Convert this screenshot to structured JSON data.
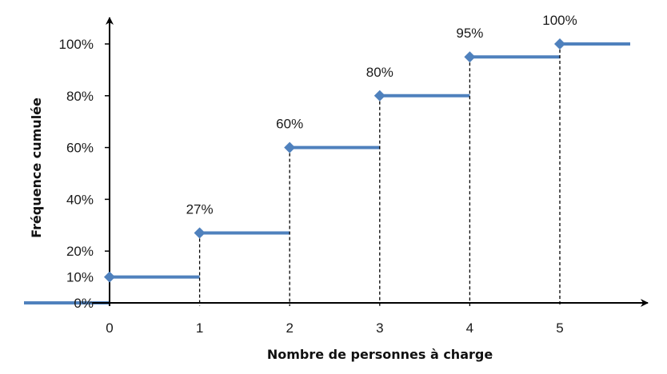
{
  "chart_data": {
    "type": "line",
    "subtype": "step",
    "title": "",
    "xlabel": "Nombre de personnes à charge",
    "ylabel": "Fréquence cumulée",
    "x_ticks": [
      "0",
      "1",
      "2",
      "3",
      "4",
      "5"
    ],
    "y_ticks": [
      {
        "value": 0,
        "label": "0%"
      },
      {
        "value": 10,
        "label": "10%"
      },
      {
        "value": 20,
        "label": "20%"
      },
      {
        "value": 40,
        "label": "40%"
      },
      {
        "value": 60,
        "label": "60%"
      },
      {
        "value": 80,
        "label": "80%"
      },
      {
        "value": 100,
        "label": "100%"
      }
    ],
    "xlim": [
      -1,
      6
    ],
    "ylim": [
      0,
      100
    ],
    "grid": false,
    "legend": "none",
    "color": "#4f81bd",
    "points": [
      {
        "x": 0,
        "y": 10,
        "label": ""
      },
      {
        "x": 1,
        "y": 27,
        "label": "27%"
      },
      {
        "x": 2,
        "y": 60,
        "label": "60%"
      },
      {
        "x": 3,
        "y": 80,
        "label": "80%"
      },
      {
        "x": 4,
        "y": 95,
        "label": "95%"
      },
      {
        "x": 5,
        "y": 100,
        "label": "100%"
      }
    ]
  }
}
